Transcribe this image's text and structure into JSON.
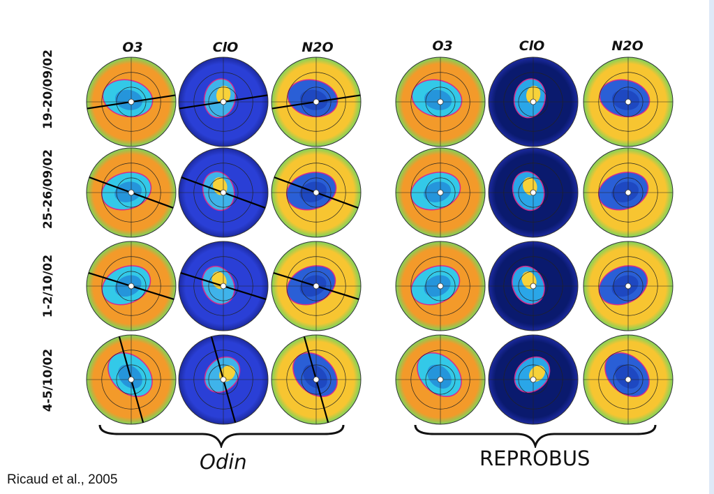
{
  "groups": [
    {
      "label": "Odin",
      "columns": [
        "O3",
        "ClO",
        "N2O"
      ]
    },
    {
      "label": "REPROBUS",
      "columns": [
        "O3",
        "ClO",
        "N2O"
      ]
    }
  ],
  "rows": [
    "19-20/09/02",
    "25-26/09/02",
    "1-2/10/02",
    "4-5/10/02"
  ],
  "citation": "Ricaud et al., 2005",
  "palette": {
    "O3_bg": "#f39a2a",
    "O3_vortex": "#33c9e8",
    "ClO_bg": "#2a3fd6",
    "ClO_hot": "#f7d23a",
    "N2O_bg": "#f7c531",
    "N2O_vortex": "#2a5fd6",
    "model_ClO_bg": "#0a1a6e",
    "vortex_edge": "#d62a8c"
  }
}
